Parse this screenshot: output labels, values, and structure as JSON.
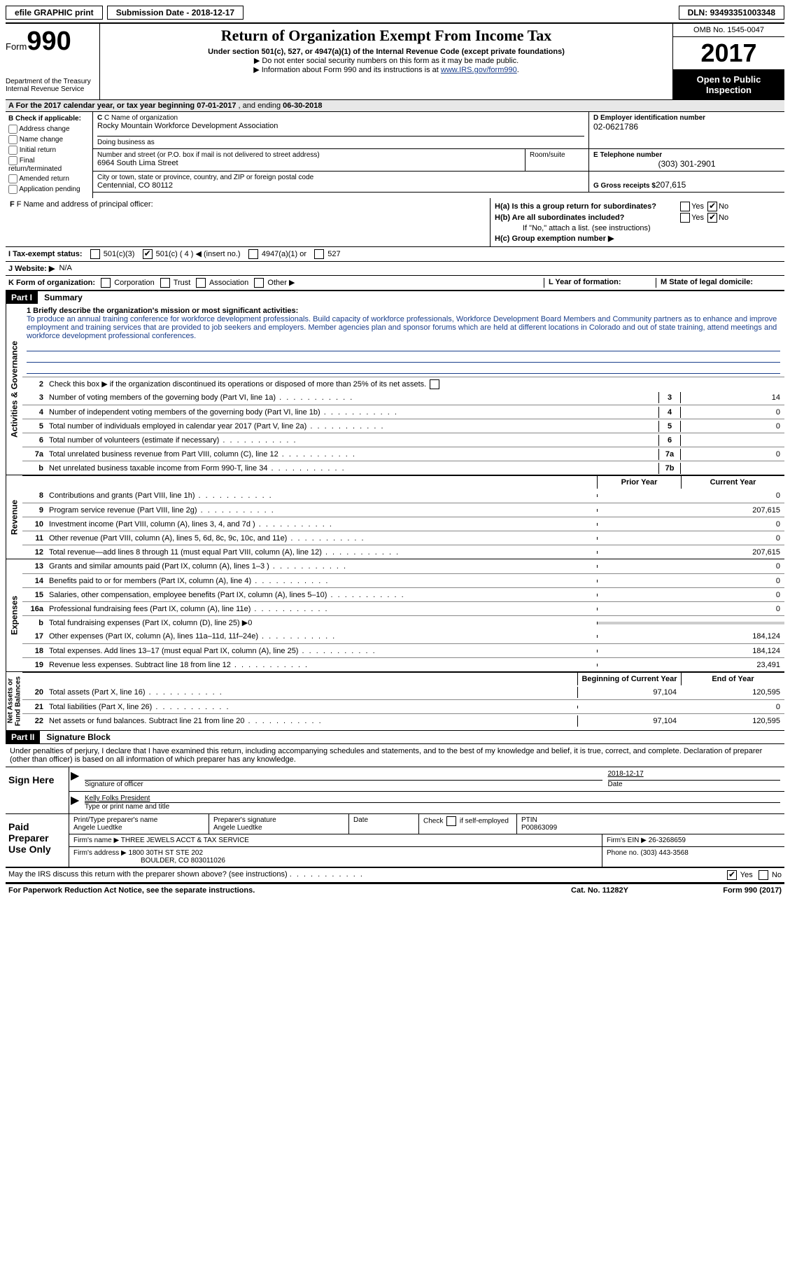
{
  "topbar": {
    "efile": "efile GRAPHIC print",
    "submission_label": "Submission Date - ",
    "submission_date": "2018-12-17",
    "dln_label": "DLN: ",
    "dln": "93493351003348"
  },
  "header": {
    "form_label": "Form",
    "form_number": "990",
    "dept": "Department of the Treasury\nInternal Revenue Service",
    "title": "Return of Organization Exempt From Income Tax",
    "subtitle": "Under section 501(c), 527, or 4947(a)(1) of the Internal Revenue Code (except private foundations)",
    "note1": "▶ Do not enter social security numbers on this form as it may be made public.",
    "note2_pre": "▶ Information about Form 990 and its instructions is at ",
    "note2_link": "www.IRS.gov/form990",
    "omb": "OMB No. 1545-0047",
    "year": "2017",
    "open": "Open to Public Inspection"
  },
  "row_a": {
    "text_pre": "A  For the 2017 calendar year, or tax year beginning ",
    "begin": "07-01-2017",
    "mid": "   , and ending ",
    "end": "06-30-2018"
  },
  "section_b": {
    "header": "B Check if applicable:",
    "items": [
      "Address change",
      "Name change",
      "Initial return",
      "Final return/terminated",
      "Amended return",
      "Application pending"
    ]
  },
  "section_c": {
    "name_label": "C Name of organization",
    "name": "Rocky Mountain Workforce Development Association",
    "dba_label": "Doing business as",
    "dba": "",
    "addr_label": "Number and street (or P.O. box if mail is not delivered to street address)",
    "addr": "6964 South Lima Street",
    "room_label": "Room/suite",
    "city_label": "City or town, state or province, country, and ZIP or foreign postal code",
    "city": "Centennial, CO  80112"
  },
  "section_d": {
    "ein_label": "D Employer identification number",
    "ein": "02-0621786",
    "phone_label": "E Telephone number",
    "phone": "(303) 301-2901",
    "gross_label": "G Gross receipts $ ",
    "gross": "207,615"
  },
  "section_f": {
    "label": "F Name and address of principal officer:",
    "value": ""
  },
  "section_h": {
    "ha": "H(a)  Is this a group return for subordinates?",
    "hb": "H(b)  Are all subordinates included?",
    "hb_note": "If \"No,\" attach a list. (see instructions)",
    "hc": "H(c)  Group exemption number ▶",
    "yes": "Yes",
    "no": "No"
  },
  "row_i": {
    "label": "I  Tax-exempt status:",
    "opts": [
      "501(c)(3)",
      "501(c) ( 4 ) ◀ (insert no.)",
      "4947(a)(1) or",
      "527"
    ],
    "checked_index": 1
  },
  "row_j": {
    "label": "J  Website: ▶",
    "value": "N/A"
  },
  "row_k": {
    "label": "K Form of organization:",
    "opts": [
      "Corporation",
      "Trust",
      "Association",
      "Other ▶"
    ],
    "l_label": "L Year of formation:",
    "m_label": "M State of legal domicile:"
  },
  "part1": {
    "header": "Part I",
    "title": "Summary",
    "side_activities": "Activities & Governance",
    "side_revenue": "Revenue",
    "side_expenses": "Expenses",
    "side_net": "Net Assets or\nFund Balances",
    "line1_label": "1 Briefly describe the organization's mission or most significant activities:",
    "mission": "To produce an annual training conference for workforce development professionals. Build capacity of workforce professionals, Workforce Development Board Members and Community partners as to enhance and improve employment and training services that are provided to job seekers and employers. Member agencies plan and sponsor forums which are held at different locations in Colorado and out of state training, attend meetings and workforce development professional conferences.",
    "line2": "Check this box ▶  if the organization discontinued its operations or disposed of more than 25% of its net assets.",
    "gov_lines": [
      {
        "n": "3",
        "d": "Number of voting members of the governing body (Part VI, line 1a)",
        "box": "3",
        "v": "14"
      },
      {
        "n": "4",
        "d": "Number of independent voting members of the governing body (Part VI, line 1b)",
        "box": "4",
        "v": "0"
      },
      {
        "n": "5",
        "d": "Total number of individuals employed in calendar year 2017 (Part V, line 2a)",
        "box": "5",
        "v": "0"
      },
      {
        "n": "6",
        "d": "Total number of volunteers (estimate if necessary)",
        "box": "6",
        "v": ""
      },
      {
        "n": "7a",
        "d": "Total unrelated business revenue from Part VIII, column (C), line 12",
        "box": "7a",
        "v": "0"
      },
      {
        "n": "b",
        "d": "Net unrelated business taxable income from Form 990-T, line 34",
        "box": "7b",
        "v": ""
      }
    ],
    "prior_year": "Prior Year",
    "current_year": "Current Year",
    "rev_lines": [
      {
        "n": "8",
        "d": "Contributions and grants (Part VIII, line 1h)",
        "py": "",
        "cy": "0"
      },
      {
        "n": "9",
        "d": "Program service revenue (Part VIII, line 2g)",
        "py": "",
        "cy": "207,615"
      },
      {
        "n": "10",
        "d": "Investment income (Part VIII, column (A), lines 3, 4, and 7d )",
        "py": "",
        "cy": "0"
      },
      {
        "n": "11",
        "d": "Other revenue (Part VIII, column (A), lines 5, 6d, 8c, 9c, 10c, and 11e)",
        "py": "",
        "cy": "0"
      },
      {
        "n": "12",
        "d": "Total revenue—add lines 8 through 11 (must equal Part VIII, column (A), line 12)",
        "py": "",
        "cy": "207,615"
      }
    ],
    "exp_lines": [
      {
        "n": "13",
        "d": "Grants and similar amounts paid (Part IX, column (A), lines 1–3 )",
        "py": "",
        "cy": "0"
      },
      {
        "n": "14",
        "d": "Benefits paid to or for members (Part IX, column (A), line 4)",
        "py": "",
        "cy": "0"
      },
      {
        "n": "15",
        "d": "Salaries, other compensation, employee benefits (Part IX, column (A), lines 5–10)",
        "py": "",
        "cy": "0"
      },
      {
        "n": "16a",
        "d": "Professional fundraising fees (Part IX, column (A), line 11e)",
        "py": "",
        "cy": "0"
      }
    ],
    "line16b": "Total fundraising expenses (Part IX, column (D), line 25) ▶0",
    "exp_lines2": [
      {
        "n": "17",
        "d": "Other expenses (Part IX, column (A), lines 11a–11d, 11f–24e)",
        "py": "",
        "cy": "184,124"
      },
      {
        "n": "18",
        "d": "Total expenses. Add lines 13–17 (must equal Part IX, column (A), line 25)",
        "py": "",
        "cy": "184,124"
      },
      {
        "n": "19",
        "d": "Revenue less expenses. Subtract line 18 from line 12",
        "py": "",
        "cy": "23,491"
      }
    ],
    "begin_year": "Beginning of Current Year",
    "end_year": "End of Year",
    "net_lines": [
      {
        "n": "20",
        "d": "Total assets (Part X, line 16)",
        "by": "97,104",
        "ey": "120,595"
      },
      {
        "n": "21",
        "d": "Total liabilities (Part X, line 26)",
        "by": "",
        "ey": "0"
      },
      {
        "n": "22",
        "d": "Net assets or fund balances. Subtract line 21 from line 20",
        "by": "97,104",
        "ey": "120,595"
      }
    ]
  },
  "part2": {
    "header": "Part II",
    "title": "Signature Block",
    "perjury": "Under penalties of perjury, I declare that I have examined this return, including accompanying schedules and statements, and to the best of my knowledge and belief, it is true, correct, and complete. Declaration of preparer (other than officer) is based on all information of which preparer has any knowledge.",
    "sign_here": "Sign Here",
    "sig_officer": "Signature of officer",
    "sig_date": "2018-12-17",
    "date_label": "Date",
    "officer_name": "Kelly Folks President",
    "type_name": "Type or print name and title",
    "paid_prep": "Paid Preparer Use Only",
    "prep_name_label": "Print/Type preparer's name",
    "prep_name": "Angele Luedtke",
    "prep_sig_label": "Preparer's signature",
    "prep_sig": "Angele Luedtke",
    "prep_date_label": "Date",
    "prep_check": "Check  if self-employed",
    "ptin_label": "PTIN",
    "ptin": "P00863099",
    "firm_name_label": "Firm's name    ▶ ",
    "firm_name": "THREE JEWELS ACCT & TAX SERVICE",
    "firm_ein_label": "Firm's EIN ▶ ",
    "firm_ein": "26-3268659",
    "firm_addr_label": "Firm's address ▶ ",
    "firm_addr1": "1800 30TH ST STE 202",
    "firm_addr2": "BOULDER, CO  803011026",
    "firm_phone_label": "Phone no. ",
    "firm_phone": "(303) 443-3568",
    "discuss": "May the IRS discuss this return with the preparer shown above? (see instructions)",
    "yes": "Yes",
    "no": "No"
  },
  "footer": {
    "paperwork": "For Paperwork Reduction Act Notice, see the separate instructions.",
    "cat": "Cat. No. 11282Y",
    "form": "Form 990 (2017)"
  }
}
